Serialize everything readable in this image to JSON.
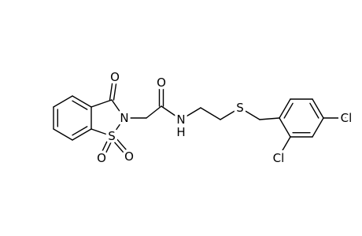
{
  "atoms": [
    "O",
    "S",
    "O",
    "O",
    "N",
    "O",
    "N",
    "H",
    "S",
    "Cl",
    "Cl"
  ]
}
